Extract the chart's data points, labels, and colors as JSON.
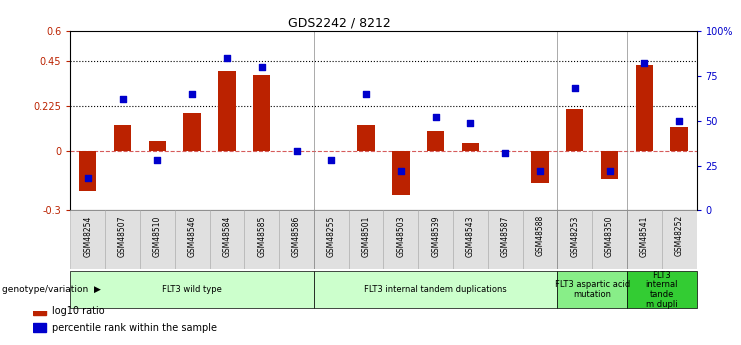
{
  "title": "GDS2242 / 8212",
  "samples": [
    "GSM48254",
    "GSM48507",
    "GSM48510",
    "GSM48546",
    "GSM48584",
    "GSM48585",
    "GSM48586",
    "GSM48255",
    "GSM48501",
    "GSM48503",
    "GSM48539",
    "GSM48543",
    "GSM48587",
    "GSM48588",
    "GSM48253",
    "GSM48350",
    "GSM48541",
    "GSM48252"
  ],
  "log10_ratio": [
    -0.2,
    0.13,
    0.05,
    0.19,
    0.4,
    0.38,
    0.0,
    0.0,
    0.13,
    -0.22,
    0.1,
    0.04,
    0.0,
    -0.16,
    0.21,
    -0.14,
    0.43,
    0.12
  ],
  "percentile_rank": [
    18,
    62,
    28,
    65,
    85,
    80,
    33,
    28,
    65,
    22,
    52,
    49,
    32,
    22,
    68,
    22,
    82,
    50
  ],
  "groups": [
    {
      "label": "FLT3 wild type",
      "start": 0,
      "end": 6,
      "color": "#ccffcc"
    },
    {
      "label": "FLT3 internal tandem duplications",
      "start": 7,
      "end": 13,
      "color": "#ccffcc"
    },
    {
      "label": "FLT3 aspartic acid\nmutation",
      "start": 14,
      "end": 15,
      "color": "#88ee88"
    },
    {
      "label": "FLT3\ninternal\ntande\nm dupli",
      "start": 16,
      "end": 17,
      "color": "#33cc33"
    }
  ],
  "ylim_left": [
    -0.3,
    0.6
  ],
  "ylim_right": [
    0,
    100
  ],
  "yticks_left": [
    -0.3,
    0.0,
    0.225,
    0.45,
    0.6
  ],
  "ytick_labels_left": [
    "-0.3",
    "0",
    "0.225",
    "0.45",
    "0.6"
  ],
  "yticks_right": [
    0,
    25,
    50,
    75,
    100
  ],
  "ytick_labels_right": [
    "0",
    "25",
    "50",
    "75",
    "100%"
  ],
  "hlines": [
    0.225,
    0.45
  ],
  "bar_color": "#bb2200",
  "dot_color": "#0000cc",
  "zero_line_color": "#cc3333",
  "background_color": "#ffffff",
  "genotype_label": "genotype/variation",
  "legend_items": [
    {
      "label": "log10 ratio",
      "color": "#bb2200"
    },
    {
      "label": "percentile rank within the sample",
      "color": "#0000cc"
    }
  ]
}
